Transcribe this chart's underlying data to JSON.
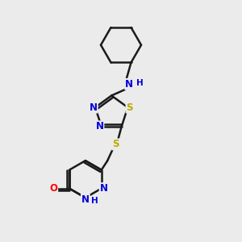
{
  "background_color": "#ebebeb",
  "atom_color_N": "#0000dd",
  "atom_color_S": "#bbaa00",
  "atom_color_O": "#ff0000",
  "bond_color": "#1a1a1a",
  "bond_width": 1.8,
  "font_size_atom": 8.5,
  "fig_width": 3.0,
  "fig_height": 3.0,
  "dpi": 100,
  "xlim": [
    0,
    10
  ],
  "ylim": [
    0,
    10
  ]
}
